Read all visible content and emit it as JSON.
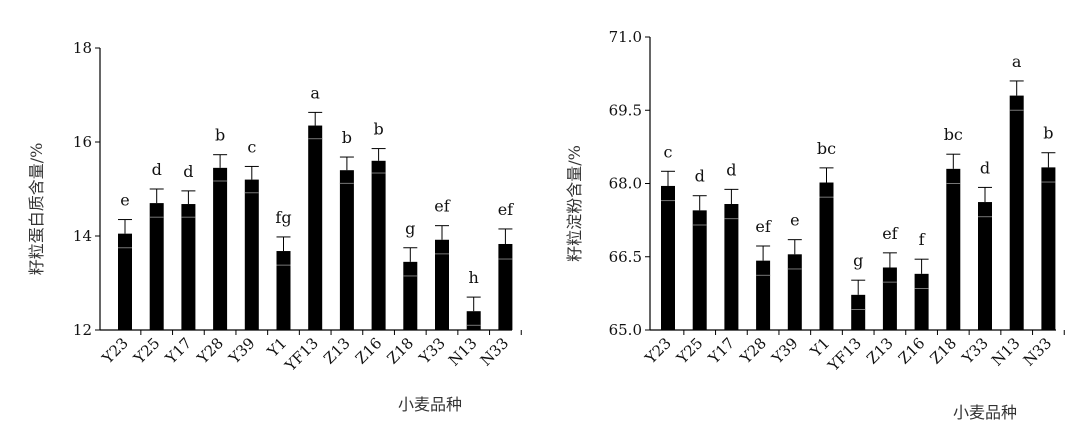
{
  "chart_data": [
    {
      "type": "bar",
      "ylabel": "籽粒蛋白质含量/%",
      "xlabel": "小麦品种",
      "ylim": [
        12,
        18
      ],
      "yticks": [
        "12",
        "14",
        "16",
        "18"
      ],
      "categories": [
        "Y23",
        "Y25",
        "Y17",
        "Y28",
        "Y39",
        "Y1",
        "YF13",
        "Z13",
        "Z16",
        "Z18",
        "Y33",
        "N13",
        "N33"
      ],
      "values": [
        14.05,
        14.7,
        14.68,
        15.45,
        15.2,
        13.68,
        16.35,
        15.4,
        15.6,
        13.45,
        13.92,
        12.4,
        13.83
      ],
      "errors": [
        0.3,
        0.3,
        0.28,
        0.28,
        0.28,
        0.3,
        0.28,
        0.28,
        0.26,
        0.3,
        0.3,
        0.3,
        0.32
      ],
      "letters": [
        "e",
        "d",
        "d",
        "b",
        "c",
        "fg",
        "a",
        "b",
        "b",
        "g",
        "ef",
        "h",
        "ef"
      ],
      "bar_color": "#000000"
    },
    {
      "type": "bar",
      "ylabel": "籽粒淀粉含量/%",
      "xlabel": "小麦品种",
      "ylim": [
        65,
        71
      ],
      "yticks": [
        "65.0",
        "66.5",
        "68.0",
        "69.5",
        "71.0"
      ],
      "categories": [
        "Y23",
        "Y25",
        "Y17",
        "Y28",
        "Y39",
        "Y1",
        "YF13",
        "Z13",
        "Z16",
        "Z18",
        "Y33",
        "N13",
        "N33"
      ],
      "values": [
        67.95,
        67.45,
        67.58,
        66.42,
        66.55,
        68.02,
        65.72,
        66.28,
        66.15,
        68.3,
        67.62,
        69.8,
        68.33
      ],
      "errors": [
        0.3,
        0.3,
        0.3,
        0.3,
        0.3,
        0.3,
        0.3,
        0.3,
        0.3,
        0.3,
        0.3,
        0.3,
        0.3
      ],
      "letters": [
        "c",
        "d",
        "d",
        "ef",
        "e",
        "bc",
        "g",
        "ef",
        "f",
        "bc",
        "d",
        "a",
        "b"
      ],
      "bar_color": "#000000"
    }
  ]
}
